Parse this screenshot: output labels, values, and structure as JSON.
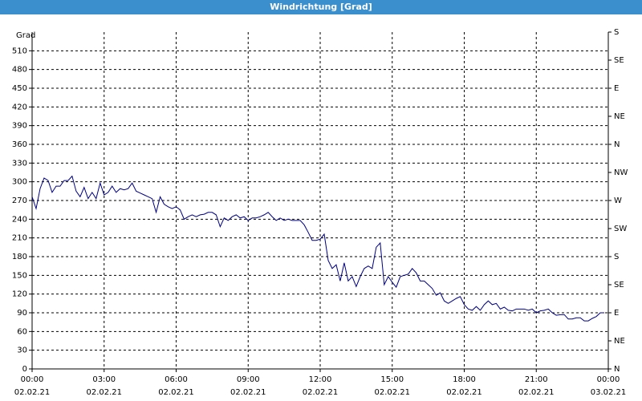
{
  "chart_data": {
    "type": "line",
    "title": "Windrichtung [Grad]",
    "y_label": "Grad",
    "x": [
      0,
      10,
      20,
      30,
      40,
      50,
      60,
      70,
      80,
      90,
      100,
      110,
      120,
      130,
      140,
      150,
      160,
      170,
      180,
      190,
      200,
      210,
      220,
      230,
      240,
      250,
      260,
      270,
      280,
      290,
      300,
      310,
      320,
      330,
      340,
      350,
      360,
      370,
      380,
      390,
      400,
      410,
      420,
      430,
      440,
      450,
      460,
      470,
      480,
      490,
      500,
      510,
      520,
      530,
      540,
      550,
      560,
      570,
      580,
      590,
      600,
      610,
      620,
      630,
      640,
      650,
      660,
      670,
      680,
      690,
      700,
      710,
      720,
      730,
      740,
      750,
      760,
      770,
      780,
      790,
      800,
      810,
      820,
      830,
      840,
      850,
      860,
      870,
      880,
      890,
      900,
      910,
      920,
      930,
      940,
      950,
      960,
      970,
      980,
      990,
      1000,
      1010,
      1020,
      1030,
      1040,
      1050,
      1060,
      1070,
      1080,
      1090,
      1100,
      1110,
      1120,
      1130,
      1140,
      1150,
      1160,
      1170,
      1180,
      1190,
      1200,
      1210,
      1220,
      1230,
      1240,
      1250,
      1260,
      1270,
      1280,
      1290,
      1300,
      1310,
      1320,
      1330,
      1340,
      1350,
      1360,
      1370,
      1380,
      1390,
      1400,
      1410,
      1420,
      1430
    ],
    "series": [
      {
        "name": "Windrichtung",
        "color": "#000080",
        "values": [
          276,
          257,
          289,
          306,
          302,
          283,
          293,
          293,
          302,
          302,
          309,
          285,
          276,
          291,
          273,
          283,
          273,
          298,
          279,
          283,
          293,
          283,
          289,
          287,
          289,
          298,
          285,
          282,
          279,
          276,
          273,
          251,
          276,
          264,
          260,
          257,
          260,
          255,
          240,
          244,
          247,
          244,
          247,
          248,
          251,
          251,
          247,
          228,
          242,
          238,
          244,
          247,
          242,
          244,
          238,
          242,
          242,
          244,
          247,
          251,
          244,
          238,
          242,
          238,
          240,
          238,
          238,
          238,
          231,
          219,
          206,
          206,
          208,
          216,
          174,
          161,
          167,
          141,
          170,
          141,
          148,
          132,
          148,
          161,
          165,
          161,
          195,
          202,
          135,
          148,
          139,
          131,
          148,
          150,
          152,
          161,
          154,
          141,
          141,
          135,
          129,
          118,
          122,
          109,
          105,
          109,
          113,
          116,
          103,
          96,
          94,
          100,
          94,
          103,
          109,
          103,
          105,
          96,
          99,
          94,
          93,
          96,
          96,
          96,
          94,
          96,
          90,
          93,
          94,
          96,
          90,
          86,
          87,
          87,
          80,
          80,
          82,
          82,
          77,
          77,
          81,
          84,
          90,
          90
        ]
      }
    ],
    "xlim": [
      0,
      1440
    ],
    "xticks": [
      {
        "value": 0,
        "label": "00:00"
      },
      {
        "value": 180,
        "label": "03:00"
      },
      {
        "value": 360,
        "label": "06:00"
      },
      {
        "value": 540,
        "label": "09:00"
      },
      {
        "value": 720,
        "label": "12:00"
      },
      {
        "value": 900,
        "label": "15:00"
      },
      {
        "value": 1080,
        "label": "18:00"
      },
      {
        "value": 1260,
        "label": "21:00"
      },
      {
        "value": 1440,
        "label": "00:00"
      }
    ],
    "xtick_dates": [
      "02.02.21",
      "02.02.21",
      "02.02.21",
      "02.02.21",
      "02.02.21",
      "02.02.21",
      "02.02.21",
      "02.02.21",
      "03.02.21"
    ],
    "ylim": [
      0,
      540
    ],
    "yticks": [
      0,
      30,
      60,
      90,
      120,
      150,
      180,
      210,
      240,
      270,
      300,
      330,
      360,
      390,
      420,
      450,
      480,
      510
    ],
    "y2lim": [
      0,
      540
    ],
    "y2ticks": [
      {
        "value": 0,
        "label": "N"
      },
      {
        "value": 45,
        "label": "NE"
      },
      {
        "value": 90,
        "label": "E"
      },
      {
        "value": 135,
        "label": "SE"
      },
      {
        "value": 180,
        "label": "S"
      },
      {
        "value": 225,
        "label": "SW"
      },
      {
        "value": 270,
        "label": "W"
      },
      {
        "value": 315,
        "label": "NW"
      },
      {
        "value": 360,
        "label": "N"
      },
      {
        "value": 405,
        "label": "NE"
      },
      {
        "value": 450,
        "label": "E"
      },
      {
        "value": 495,
        "label": "SE"
      },
      {
        "value": 540,
        "label": "S"
      }
    ],
    "grid": true
  }
}
